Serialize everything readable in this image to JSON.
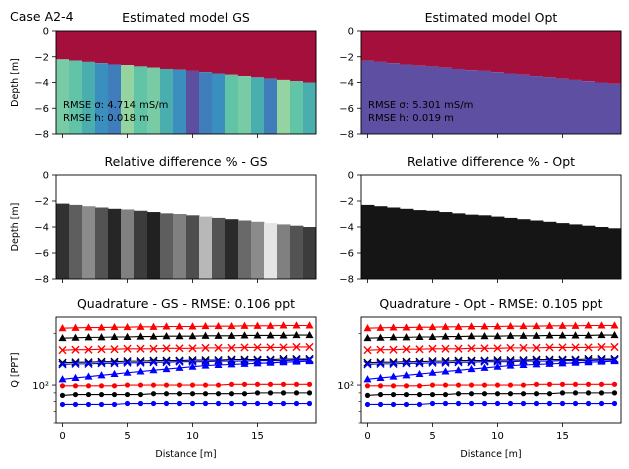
{
  "figure": {
    "suptitle": "Case A2-4"
  },
  "colors": {
    "top_layer": "#a50f3c",
    "gs_palette": [
      "#78cba5",
      "#61c4a6",
      "#4aaeae",
      "#3a8fbf",
      "#3f7ebb",
      "#4b6bb0",
      "#5d4fa0",
      "#95d3a0"
    ],
    "opt_bottom": "#5e4fa2",
    "diff_opt": "#151515",
    "q_red": "#ff0000",
    "q_black": "#000000",
    "q_blue": "#0000ff"
  },
  "chart_data": [
    {
      "id": "gs_model",
      "type": "heatmap",
      "title": "Estimated model GS",
      "xlabel": "",
      "ylabel": "Depth [m]",
      "xlim": [
        -0.5,
        19.5
      ],
      "ylim": [
        -8,
        0
      ],
      "yticks": [
        "0",
        "−2",
        "−4",
        "−6",
        "−8"
      ],
      "interface_depth": [
        -2.2,
        -2.3,
        -2.4,
        -2.5,
        -2.6,
        -2.65,
        -2.75,
        -2.85,
        -2.95,
        -3.0,
        -3.1,
        -3.2,
        -3.3,
        -3.4,
        -3.5,
        -3.6,
        -3.7,
        -3.8,
        -3.9,
        -4.0
      ],
      "bottom_color_index": [
        0,
        1,
        2,
        3,
        4,
        7,
        1,
        0,
        2,
        3,
        6,
        4,
        3,
        1,
        0,
        2,
        4,
        7,
        1,
        2
      ],
      "annotation_lines": [
        "RMSE σ: 4.714 mS/m",
        "RMSE h: 0.018 m"
      ]
    },
    {
      "id": "opt_model",
      "type": "heatmap",
      "title": "Estimated model Opt",
      "xlabel": "",
      "ylabel": "",
      "xlim": [
        -0.5,
        19.5
      ],
      "ylim": [
        -8,
        0
      ],
      "yticks": [
        "0",
        "−2",
        "−4",
        "−6",
        "−8"
      ],
      "interface_depth": [
        -2.3,
        -2.4,
        -2.5,
        -2.6,
        -2.7,
        -2.75,
        -2.85,
        -2.95,
        -3.05,
        -3.1,
        -3.2,
        -3.3,
        -3.4,
        -3.5,
        -3.6,
        -3.7,
        -3.8,
        -3.9,
        -4.0,
        -4.1
      ],
      "annotation_lines": [
        "RMSE σ: 5.301 mS/m",
        "RMSE h: 0.019 m"
      ]
    },
    {
      "id": "gs_diff",
      "type": "heatmap",
      "title": "Relative difference % - GS",
      "xlabel": "",
      "ylabel": "Depth [m]",
      "xlim": [
        -0.5,
        19.5
      ],
      "ylim": [
        -8,
        0
      ],
      "yticks": [
        "0",
        "−2",
        "−4",
        "−6",
        "−8"
      ],
      "interface_depth": [
        -2.2,
        -2.3,
        -2.4,
        -2.5,
        -2.6,
        -2.65,
        -2.75,
        -2.85,
        -2.95,
        -3.0,
        -3.1,
        -3.2,
        -3.3,
        -3.4,
        -3.5,
        -3.6,
        -3.7,
        -3.8,
        -3.9,
        -4.0
      ],
      "brightness": [
        0.15,
        0.35,
        0.55,
        0.3,
        0.1,
        0.5,
        0.2,
        0.08,
        0.35,
        0.5,
        0.28,
        0.75,
        0.3,
        0.12,
        0.4,
        0.55,
        0.95,
        0.5,
        0.3,
        0.2
      ]
    },
    {
      "id": "opt_diff",
      "type": "heatmap",
      "title": "Relative difference % - Opt",
      "xlabel": "",
      "ylabel": "",
      "xlim": [
        -0.5,
        19.5
      ],
      "ylim": [
        -8,
        0
      ],
      "yticks": [
        "0",
        "−2",
        "−4",
        "−6",
        "−8"
      ],
      "interface_depth": [
        -2.3,
        -2.4,
        -2.5,
        -2.6,
        -2.7,
        -2.75,
        -2.85,
        -2.95,
        -3.05,
        -3.1,
        -3.2,
        -3.3,
        -3.4,
        -3.5,
        -3.6,
        -3.7,
        -3.8,
        -3.9,
        -4.0,
        -4.1
      ]
    },
    {
      "id": "gs_quad",
      "type": "scatter",
      "title": "Quadrature - GS - RMSE: 0.106 ppt",
      "xlabel": "Distance [m]",
      "ylabel": "Q [PPT]",
      "xlim": [
        -0.5,
        19.5
      ],
      "xticks": [
        "0",
        "5",
        "10",
        "15"
      ],
      "ylim_log": [
        60,
        250
      ],
      "ytick_label": "10²",
      "series": [
        {
          "color": "red",
          "marker": "triangle",
          "values": [
            215,
            216,
            217,
            217,
            218,
            218,
            219,
            219,
            220,
            220,
            220,
            221,
            221,
            221,
            222,
            222,
            222,
            223,
            223,
            223
          ]
        },
        {
          "color": "black",
          "marker": "triangle",
          "values": [
            188,
            189,
            190,
            190,
            191,
            191,
            192,
            192,
            193,
            193,
            193,
            194,
            194,
            194,
            195,
            195,
            195,
            195,
            196,
            196
          ]
        },
        {
          "color": "red",
          "marker": "x",
          "values": [
            160,
            161,
            161,
            162,
            162,
            163,
            163,
            163,
            164,
            164,
            164,
            165,
            165,
            165,
            166,
            166,
            166,
            166,
            167,
            167
          ]
        },
        {
          "color": "black",
          "marker": "x",
          "values": [
            135,
            136,
            136,
            137,
            137,
            138,
            138,
            139,
            139,
            139,
            140,
            140,
            140,
            141,
            141,
            141,
            141,
            142,
            142,
            142
          ]
        },
        {
          "color": "blue",
          "marker": "x",
          "values": [
            132,
            133,
            133,
            134,
            134,
            135,
            135,
            136,
            136,
            137,
            137,
            137,
            138,
            138,
            138,
            139,
            139,
            139,
            140,
            140
          ]
        },
        {
          "color": "blue",
          "marker": "triangle",
          "values": [
            108,
            110,
            112,
            114,
            116,
            118,
            120,
            122,
            124,
            126,
            128,
            130,
            131,
            132,
            133,
            134,
            135,
            136,
            137,
            138
          ]
        },
        {
          "color": "red",
          "marker": "dot",
          "values": [
            99,
            99,
            99,
            99,
            99,
            100,
            100,
            100,
            100,
            100,
            100,
            100,
            100,
            101,
            101,
            101,
            101,
            101,
            101,
            101
          ]
        },
        {
          "color": "black",
          "marker": "dot",
          "values": [
            87,
            88,
            88,
            88,
            88,
            88,
            88,
            89,
            89,
            89,
            89,
            89,
            89,
            89,
            89,
            90,
            90,
            90,
            90,
            90
          ]
        },
        {
          "color": "blue",
          "marker": "dot",
          "values": [
            77,
            77,
            77,
            77,
            77,
            78,
            78,
            78,
            78,
            78,
            78,
            78,
            78,
            78,
            78,
            78,
            78,
            78,
            78,
            78
          ]
        }
      ]
    },
    {
      "id": "opt_quad",
      "type": "scatter",
      "title": "Quadrature - Opt - RMSE: 0.105 ppt",
      "xlabel": "Distance [m]",
      "ylabel": "",
      "xlim": [
        -0.5,
        19.5
      ],
      "xticks": [
        "0",
        "5",
        "10",
        "15"
      ],
      "ylim_log": [
        60,
        250
      ],
      "ytick_label": "10²",
      "series": [
        {
          "color": "red",
          "marker": "triangle",
          "values": [
            215,
            216,
            217,
            217,
            218,
            218,
            219,
            219,
            220,
            220,
            220,
            221,
            221,
            221,
            222,
            222,
            222,
            223,
            223,
            223
          ]
        },
        {
          "color": "black",
          "marker": "triangle",
          "values": [
            188,
            189,
            190,
            190,
            191,
            191,
            192,
            192,
            193,
            193,
            193,
            194,
            194,
            194,
            195,
            195,
            195,
            195,
            196,
            196
          ]
        },
        {
          "color": "red",
          "marker": "x",
          "values": [
            160,
            161,
            161,
            162,
            162,
            163,
            163,
            163,
            164,
            164,
            164,
            165,
            165,
            165,
            166,
            166,
            166,
            166,
            167,
            167
          ]
        },
        {
          "color": "black",
          "marker": "x",
          "values": [
            135,
            136,
            136,
            137,
            137,
            138,
            138,
            139,
            139,
            139,
            140,
            140,
            140,
            141,
            141,
            141,
            141,
            142,
            142,
            142
          ]
        },
        {
          "color": "blue",
          "marker": "x",
          "values": [
            132,
            133,
            133,
            134,
            134,
            135,
            135,
            136,
            136,
            137,
            137,
            137,
            138,
            138,
            138,
            139,
            139,
            139,
            140,
            140
          ]
        },
        {
          "color": "blue",
          "marker": "triangle",
          "values": [
            108,
            110,
            112,
            114,
            116,
            118,
            120,
            122,
            124,
            126,
            128,
            130,
            131,
            132,
            133,
            134,
            135,
            136,
            137,
            138
          ]
        },
        {
          "color": "red",
          "marker": "dot",
          "values": [
            99,
            99,
            99,
            99,
            99,
            100,
            100,
            100,
            100,
            100,
            100,
            100,
            100,
            101,
            101,
            101,
            101,
            101,
            101,
            101
          ]
        },
        {
          "color": "black",
          "marker": "dot",
          "values": [
            87,
            88,
            88,
            88,
            88,
            88,
            88,
            89,
            89,
            89,
            89,
            89,
            89,
            89,
            89,
            90,
            90,
            90,
            90,
            90
          ]
        },
        {
          "color": "blue",
          "marker": "dot",
          "values": [
            77,
            77,
            77,
            77,
            77,
            78,
            78,
            78,
            78,
            78,
            78,
            78,
            78,
            78,
            78,
            78,
            78,
            78,
            78,
            78
          ]
        }
      ]
    }
  ]
}
